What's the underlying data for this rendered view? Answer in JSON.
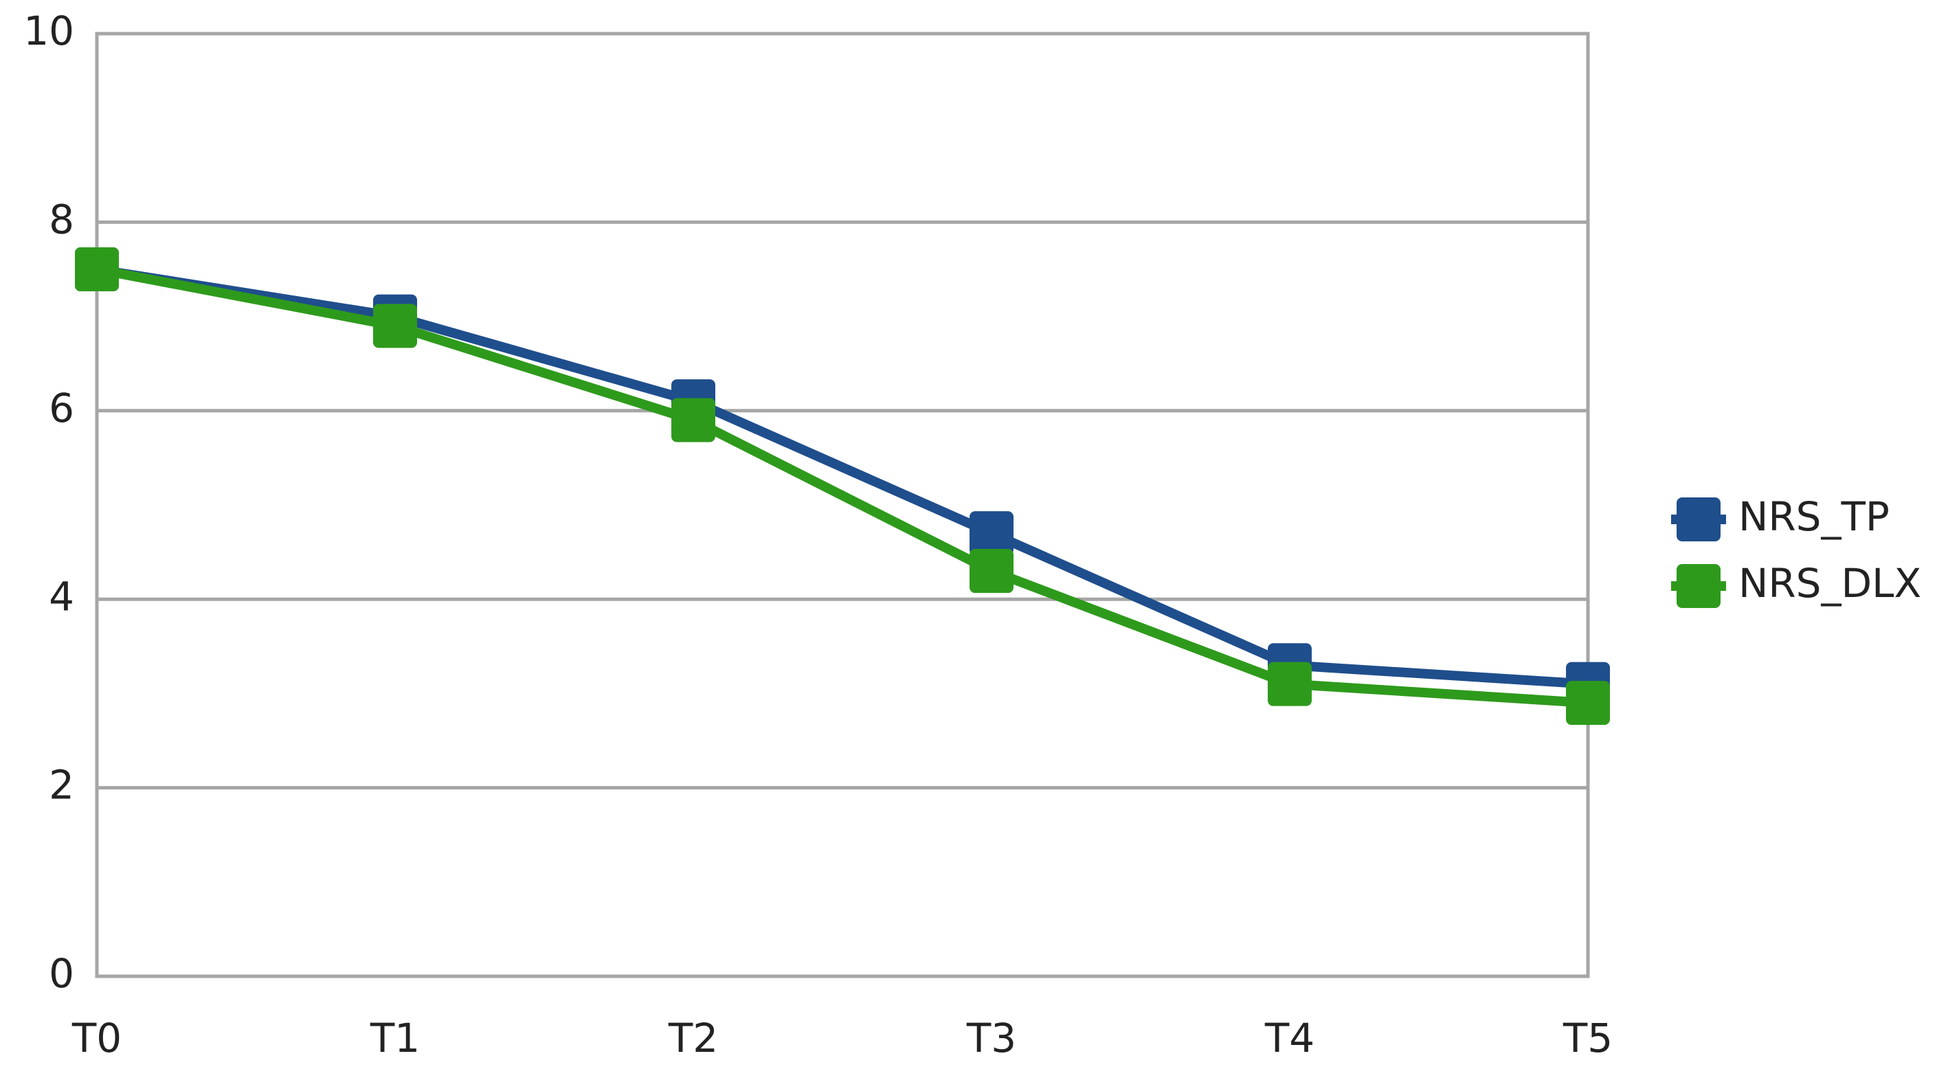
{
  "chart_data": {
    "type": "line",
    "categories": [
      "T0",
      "T1",
      "T2",
      "T3",
      "T4",
      "T5"
    ],
    "series": [
      {
        "name": "NRS_TP",
        "color": "#1f4e8c",
        "values": [
          7.5,
          7.0,
          6.1,
          4.7,
          3.3,
          3.1
        ]
      },
      {
        "name": "NRS_DLX",
        "color": "#2e9a1c",
        "values": [
          7.5,
          6.9,
          5.9,
          4.3,
          3.1,
          2.9
        ]
      }
    ],
    "ylim": [
      0,
      10
    ],
    "yticks": [
      0,
      2,
      4,
      6,
      8,
      10
    ],
    "grid": true,
    "legend": "right"
  }
}
